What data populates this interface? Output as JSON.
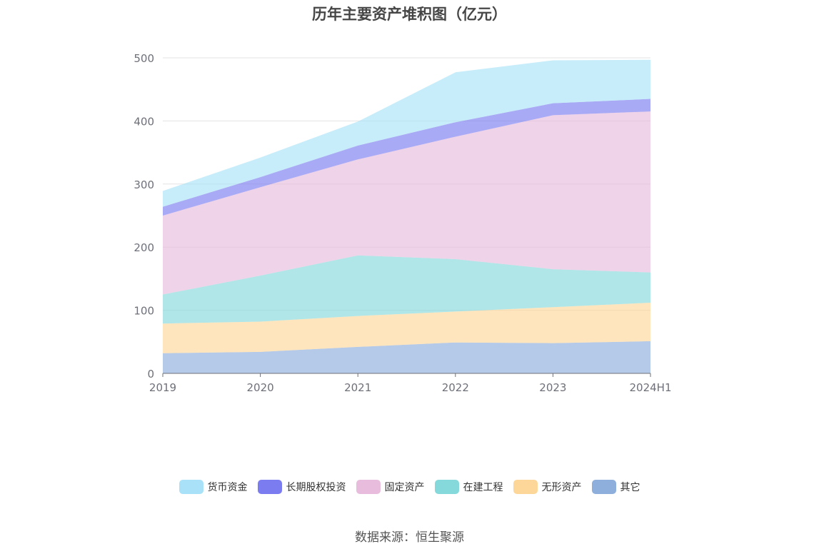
{
  "chart_data": {
    "type": "area",
    "title": "历年主要资产堆积图（亿元）",
    "source": "数据来源：恒生聚源",
    "categories": [
      "2019",
      "2020",
      "2021",
      "2022",
      "2023",
      "2024H1"
    ],
    "ylim": [
      0,
      500
    ],
    "yticks": [
      "0",
      "100",
      "200",
      "300",
      "400",
      "500"
    ],
    "stacked": true,
    "grid": true,
    "legend_position": "bottom",
    "series": [
      {
        "name": "其它",
        "color": "#8eaedc",
        "values": [
          32,
          34,
          42,
          49,
          48,
          51
        ]
      },
      {
        "name": "无形资产",
        "color": "#fdd799",
        "values": [
          47,
          48,
          49,
          49,
          57,
          61
        ]
      },
      {
        "name": "在建工程",
        "color": "#85d9db",
        "values": [
          46,
          73,
          96,
          83,
          60,
          48
        ]
      },
      {
        "name": "固定资产",
        "color": "#e7bcdc",
        "values": [
          125,
          140,
          152,
          194,
          244,
          255
        ]
      },
      {
        "name": "长期股权投资",
        "color": "#7b7cf0",
        "values": [
          14,
          16,
          22,
          23,
          19,
          20
        ]
      },
      {
        "name": "货币资金",
        "color": "#a9e2f8",
        "values": [
          25,
          31,
          38,
          79,
          68,
          62
        ]
      }
    ]
  }
}
